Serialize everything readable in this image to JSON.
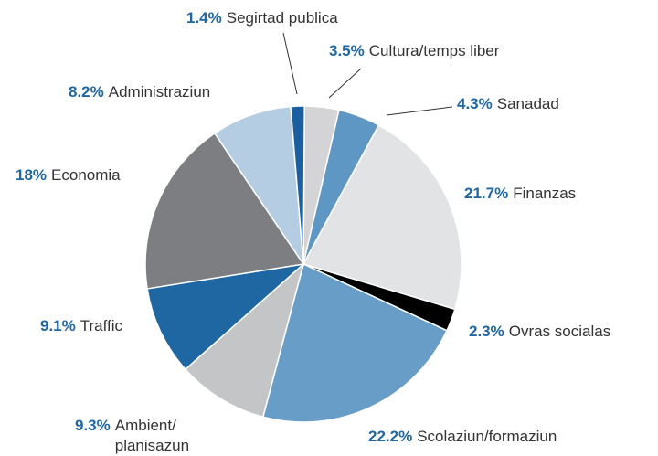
{
  "chart_data": {
    "type": "pie",
    "categories": [
      "Cultura/temps liber",
      "Sanadad",
      "Finanzas",
      "Ovras socialas",
      "Scolaziun/formaziun",
      "Ambient/ planisazun",
      "Traffic",
      "Economia",
      "Administraziun",
      "Segirtad publica"
    ],
    "values": [
      3.5,
      4.3,
      21.7,
      2.3,
      22.2,
      9.3,
      9.1,
      18,
      8.2,
      1.4
    ],
    "value_labels": [
      "3.5%",
      "4.3%",
      "21.7%",
      "2.3%",
      "22.2%",
      "9.3%",
      "9.1%",
      "18%",
      "8.2%",
      "1.4%"
    ],
    "colors": [
      "#d4d4d6",
      "#5f97c4",
      "#e2e3e5",
      "#000000",
      "#679dc6",
      "#c4c5c7",
      "#1f67a3",
      "#7c7e82",
      "#b4cde2",
      "#1a5fa0"
    ]
  }
}
